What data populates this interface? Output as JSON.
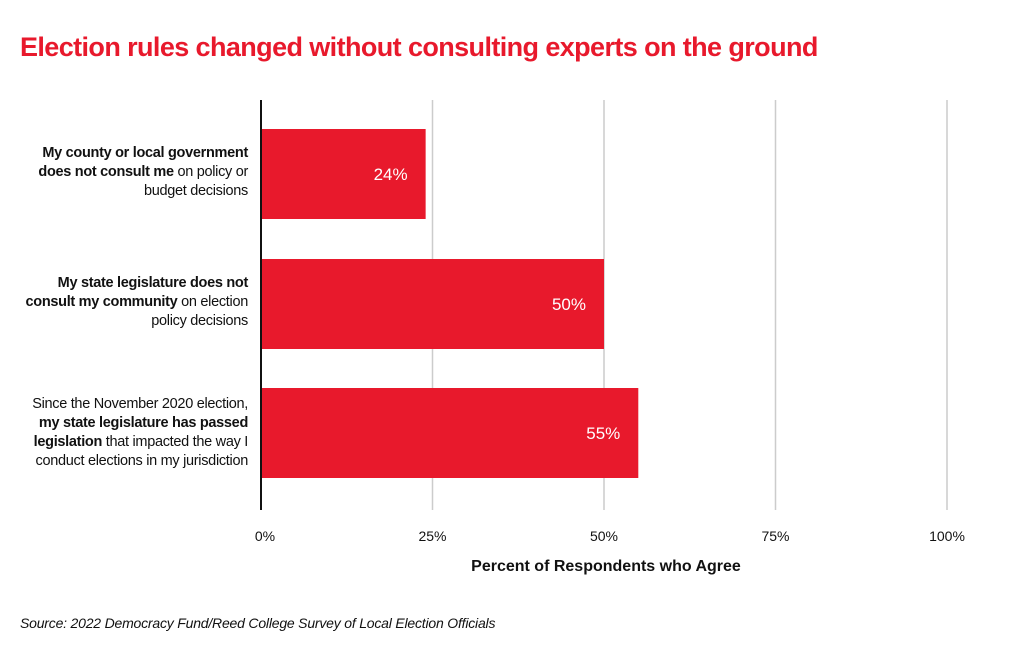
{
  "title": "Election rules changed without consulting experts on the ground",
  "source": "Source: 2022 Democracy Fund/Reed College Survey of Local Election Officials",
  "colors": {
    "accent": "#e8192c",
    "grid": "#cccccc",
    "axis": "#111111",
    "bar_label": "#ffffff"
  },
  "categories": [
    {
      "segments": [
        {
          "text": "My county or local government does not consult me",
          "bold": true
        },
        {
          "text": " on policy or budget decisions",
          "bold": false
        }
      ]
    },
    {
      "segments": [
        {
          "text": "My state legislature does not consult my community",
          "bold": true
        },
        {
          "text": " on election policy decisions",
          "bold": false
        }
      ]
    },
    {
      "segments": [
        {
          "text": "Since the November 2020 election, ",
          "bold": false
        },
        {
          "text": "my state legislature has passed legislation",
          "bold": true
        },
        {
          "text": " that impacted the way I conduct elections in my jurisdiction",
          "bold": false
        }
      ]
    }
  ],
  "chart_data": {
    "type": "bar",
    "orientation": "horizontal",
    "title": "Election rules changed without consulting experts on the ground",
    "categories": [
      "My county or local government does not consult me on policy or budget decisions",
      "My state legislature does not consult my community on election policy decisions",
      "Since the November 2020 election, my state legislature has passed legislation that impacted the way I conduct elections in my jurisdiction"
    ],
    "values": [
      24,
      50,
      55
    ],
    "data_labels": [
      "24%",
      "50%",
      "55%"
    ],
    "xlabel": "Percent of Respondents who Agree",
    "ylabel": "",
    "xlim": [
      0,
      100
    ],
    "xticks": [
      0,
      25,
      50,
      75,
      100
    ],
    "xtick_labels": [
      "0%",
      "25%",
      "50%",
      "75%",
      "100%"
    ],
    "grid": "vertical",
    "legend": "none"
  }
}
